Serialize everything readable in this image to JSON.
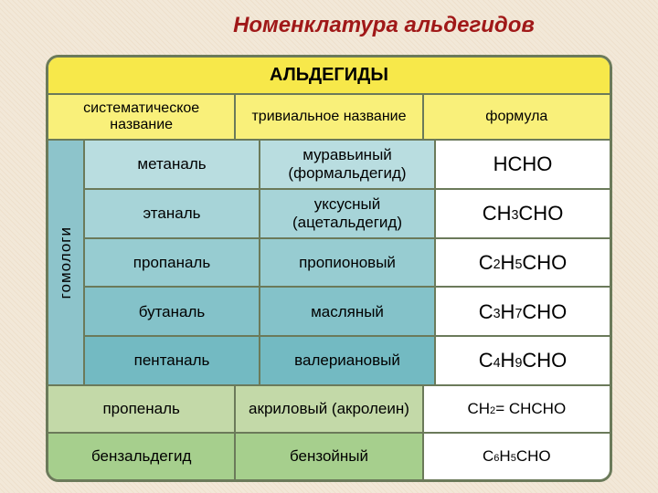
{
  "page": {
    "title": "Номенклатура альдегидов",
    "title_color": "#a01818",
    "background_pattern_color": "#f2e8d8"
  },
  "table": {
    "border_color": "#6b7a5a",
    "header_bg": "#f7e84a",
    "header_text": "АЛЬДЕГИДЫ",
    "subheader_bg": "#f9f07a",
    "columns": [
      "систематическое название",
      "тривиальное название",
      "формула"
    ],
    "side_label": "гомологи",
    "side_label_bg": "#8dc4cb",
    "homolog_rows": [
      {
        "bg": "#b9dde0",
        "sys": "метаналь",
        "triv": "муравьиный (формальдегид)",
        "formula": "HCHO"
      },
      {
        "bg": "#a7d4d8",
        "sys": "этаналь",
        "triv": "уксусный (ацетальдегид)",
        "formula": "CH<sub>3</sub>CHO"
      },
      {
        "bg": "#97ccd1",
        "sys": "пропаналь",
        "triv": "пропионовый",
        "formula": "C<sub>2</sub>H<sub>5</sub>CHO"
      },
      {
        "bg": "#84c2c9",
        "sys": "бутаналь",
        "triv": "масляный",
        "formula": "C<sub>3</sub>H<sub>7</sub>CHO"
      },
      {
        "bg": "#73bac2",
        "sys": "пентаналь",
        "triv": "валериановый",
        "formula": "C<sub>4</sub>H<sub>9</sub>CHO"
      }
    ],
    "other_rows": [
      {
        "bg": "#c3d9a8",
        "sys": "пропеналь",
        "triv": "акриловый (акролеин)",
        "formula": "CH<sub>2</sub> = CHCHO"
      },
      {
        "bg": "#a6cf8d",
        "sys": "бензальдегид",
        "triv": "бензойный",
        "formula": "C<sub>6</sub>H<sub>5</sub>CHO"
      }
    ]
  }
}
